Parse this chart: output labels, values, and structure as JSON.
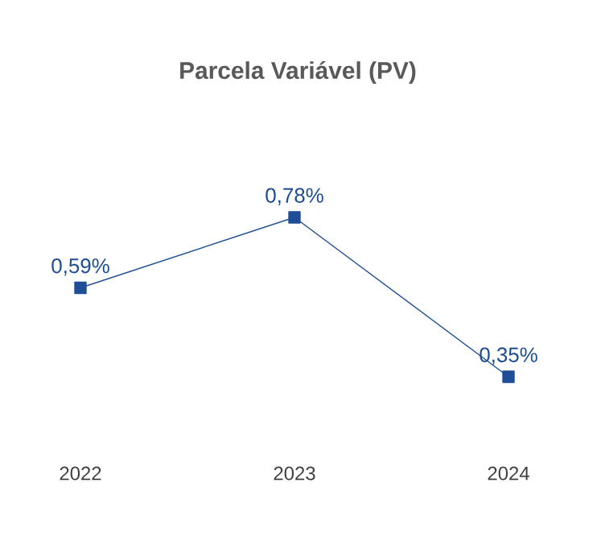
{
  "chart_data": {
    "type": "line",
    "title": "Parcela Variável (PV)",
    "categories": [
      "2022",
      "2023",
      "2024"
    ],
    "series": [
      {
        "color": "#1f4e96",
        "values": [
          0.59,
          0.78,
          0.35
        ],
        "value_labels": [
          "0,59%",
          "0,78%",
          "0,35%"
        ]
      }
    ],
    "marker": "square",
    "line_style": "solid"
  }
}
